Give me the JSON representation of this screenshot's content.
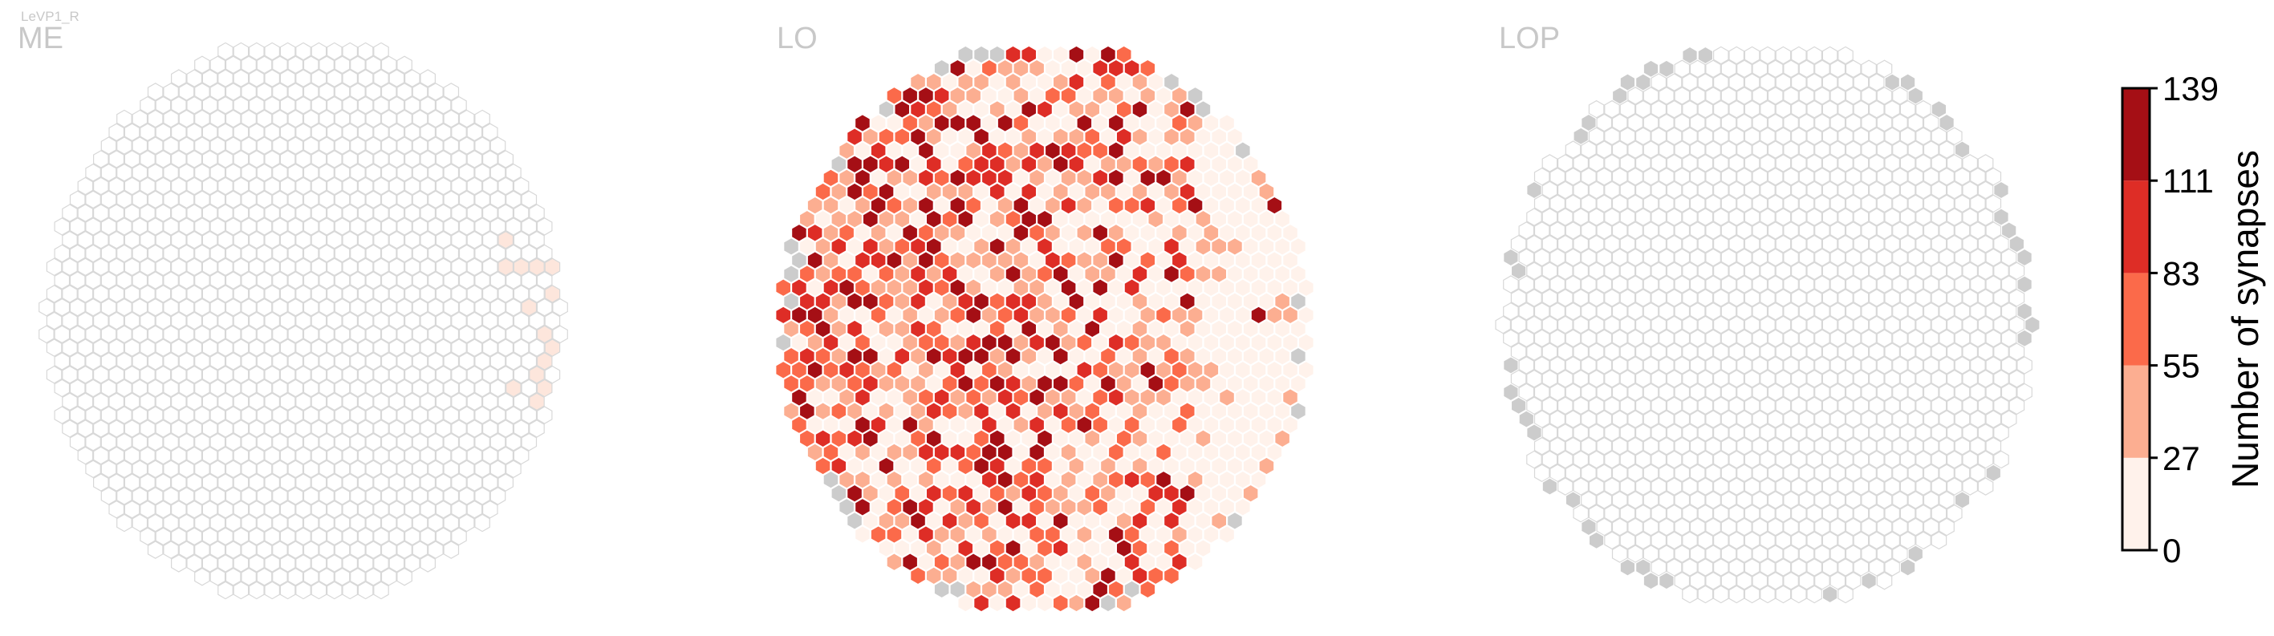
{
  "figure": {
    "cell_type_label": "LeVP1_R"
  },
  "chart_data": [
    {
      "type": "heatmap",
      "title": "ME",
      "grid_shape": "hexagonal",
      "columns": 34,
      "rows": 37,
      "empty_color": "#ffffff",
      "outline_color": "#d9d9d9",
      "no_data_color": "#cccccc",
      "sample_values": [
        12,
        9,
        15,
        7,
        10
      ]
    },
    {
      "type": "heatmap",
      "title": "LO",
      "grid_shape": "hexagonal",
      "columns": 34,
      "rows": 35,
      "no_data_color": "#cccccc",
      "value_range": [
        0,
        139
      ],
      "peak_value": 139
    },
    {
      "type": "heatmap",
      "title": "LOP",
      "grid_shape": "hexagonal",
      "columns": 34,
      "rows": 35,
      "empty_color": "#ffffff",
      "outline_color": "#d9d9d9",
      "no_data_color": "#cccccc"
    }
  ],
  "colorbar": {
    "label": "Number of synapses",
    "ticks": [
      "0",
      "27",
      "55",
      "83",
      "111",
      "139"
    ],
    "bins": [
      {
        "min": 0,
        "max": 27,
        "color": "#fff2eb"
      },
      {
        "min": 27,
        "max": 55,
        "color": "#fcae91"
      },
      {
        "min": 55,
        "max": 83,
        "color": "#fb6a4a"
      },
      {
        "min": 83,
        "max": 111,
        "color": "#de2d26"
      },
      {
        "min": 111,
        "max": 139,
        "color": "#a50f15"
      }
    ]
  }
}
